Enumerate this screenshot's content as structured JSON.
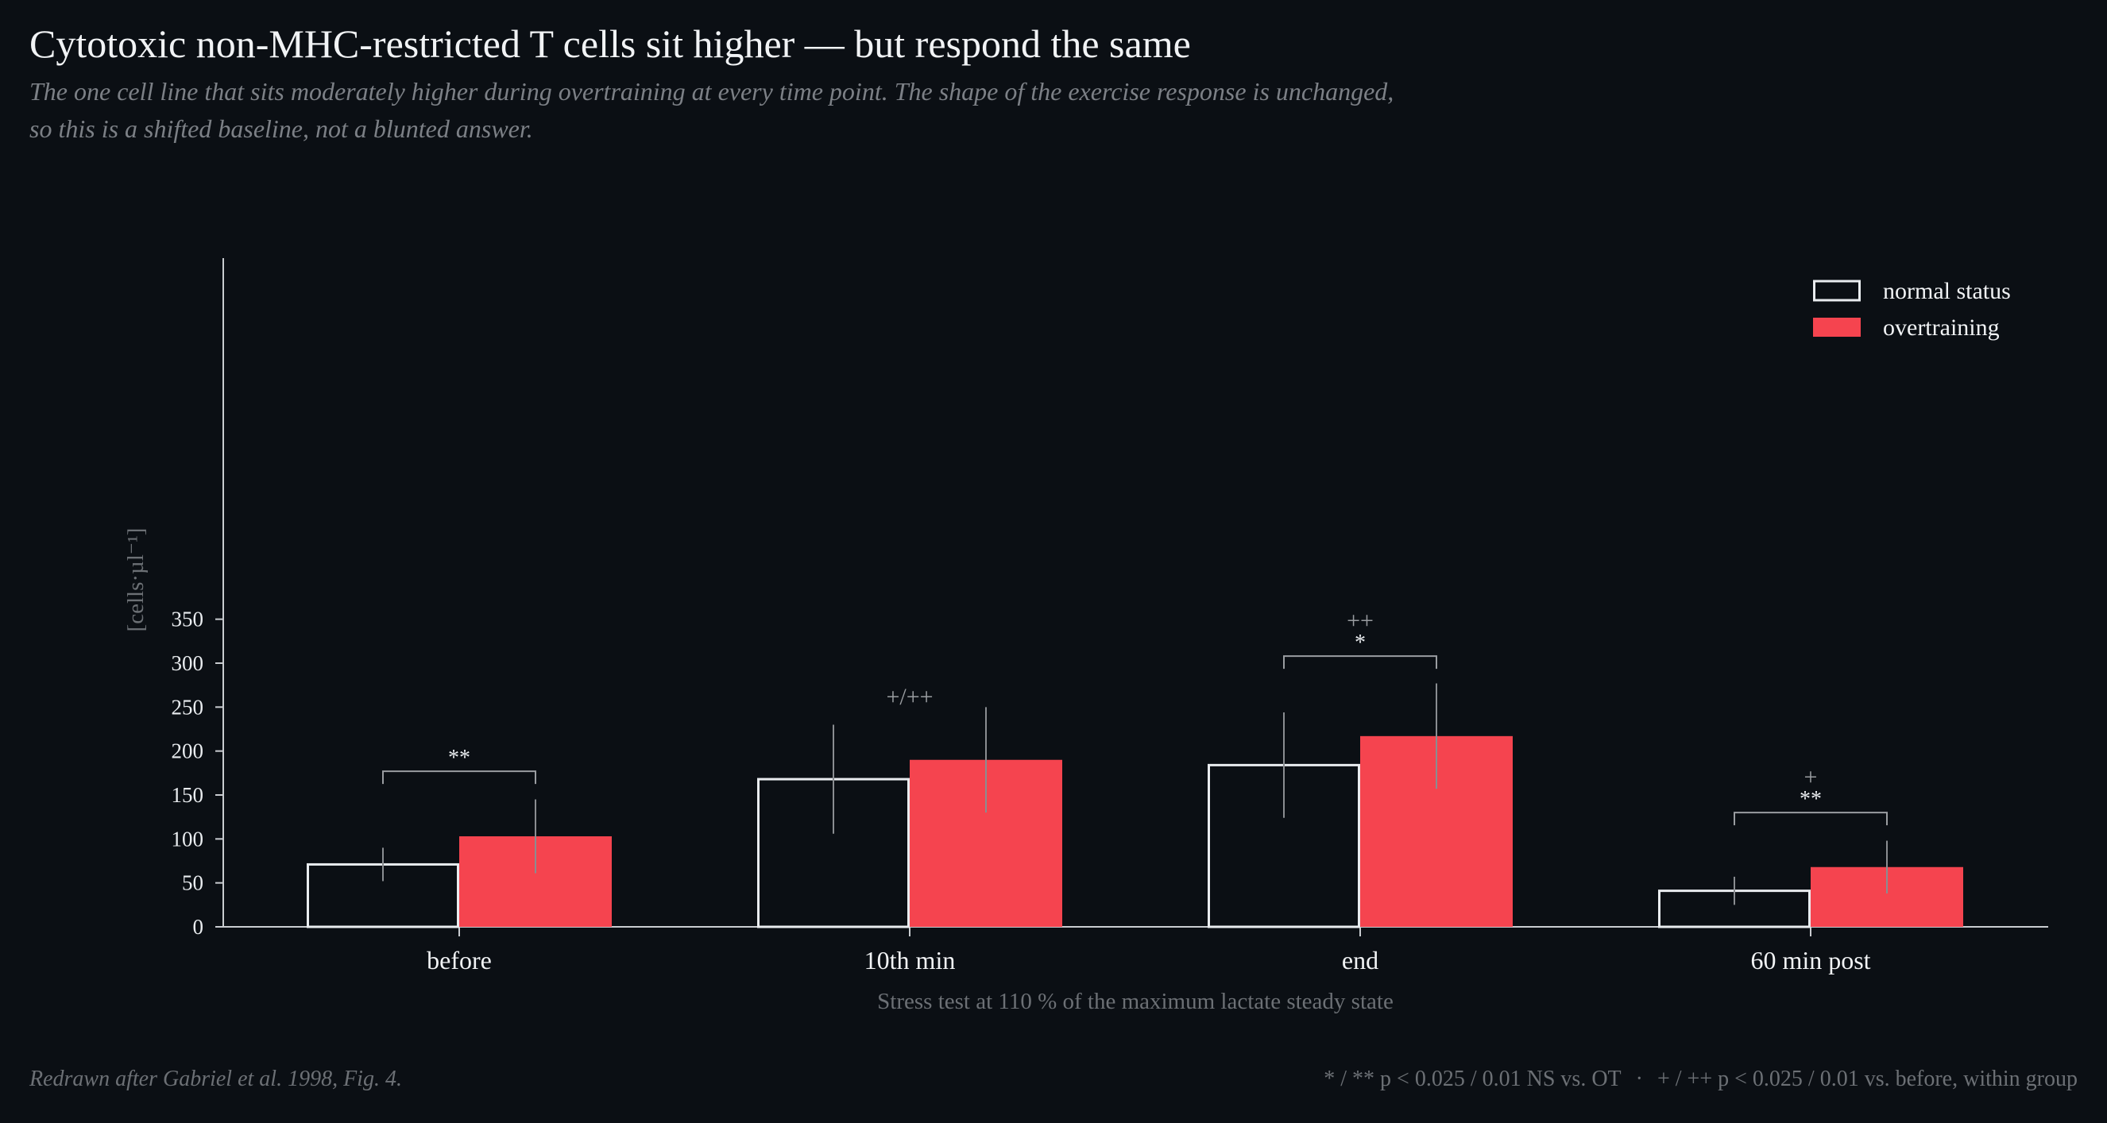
{
  "header": {
    "title": "Cytotoxic non-MHC-restricted T cells sit higher — but respond the same",
    "subtitle": "The one cell line that sits moderately higher during overtraining at every time point. The shape of the exercise response is unchanged, so this is a shifted baseline, not a blunted answer."
  },
  "footer": {
    "source": "Redrawn after Gabriel et al. 1998, Fig. 4.",
    "note_between": "* / ** p < 0.025 / 0.01 NS vs. OT",
    "separator": "·",
    "note_within": "+ / ++ p < 0.025 / 0.01 vs. before, within group"
  },
  "colors": {
    "background": "#0b0f14",
    "normal_stroke": "#e9ecef",
    "overtraining_fill": "#f5444f",
    "error_bar": "#8a8d91",
    "bracket": "#9a9da1"
  },
  "chart_data": {
    "type": "bar",
    "categories": [
      "before",
      "10th min",
      "end",
      "60 min post"
    ],
    "series": [
      {
        "name": "normal status",
        "style": "outline",
        "values": [
          71,
          168,
          184,
          41
        ],
        "sd": [
          19,
          62,
          60,
          16
        ]
      },
      {
        "name": "overtraining",
        "style": "filled",
        "values": [
          103,
          190,
          217,
          68
        ],
        "sd": [
          42,
          60,
          60,
          30
        ]
      }
    ],
    "xlabel": "Stress test at 110 % of the maximum lactate steady state",
    "ylabel": "[cells·µl⁻¹]",
    "ylim": [
      0,
      380
    ],
    "yticks": [
      0,
      50,
      100,
      150,
      200,
      250,
      300,
      350
    ],
    "grid": false,
    "legend": "top-right",
    "between_group_brackets": [
      {
        "category": "before",
        "label": "**",
        "at": 177
      },
      {
        "category": "end",
        "label": "*",
        "at": 308
      },
      {
        "category": "60 min post",
        "label": "**",
        "at": 130
      }
    ],
    "within_group_marks": [
      {
        "category": "10th min",
        "label": "+/++",
        "at": 262
      },
      {
        "category": "end",
        "label": "++",
        "at": 349
      },
      {
        "category": "60 min post",
        "label": "+",
        "at": 171
      }
    ]
  }
}
